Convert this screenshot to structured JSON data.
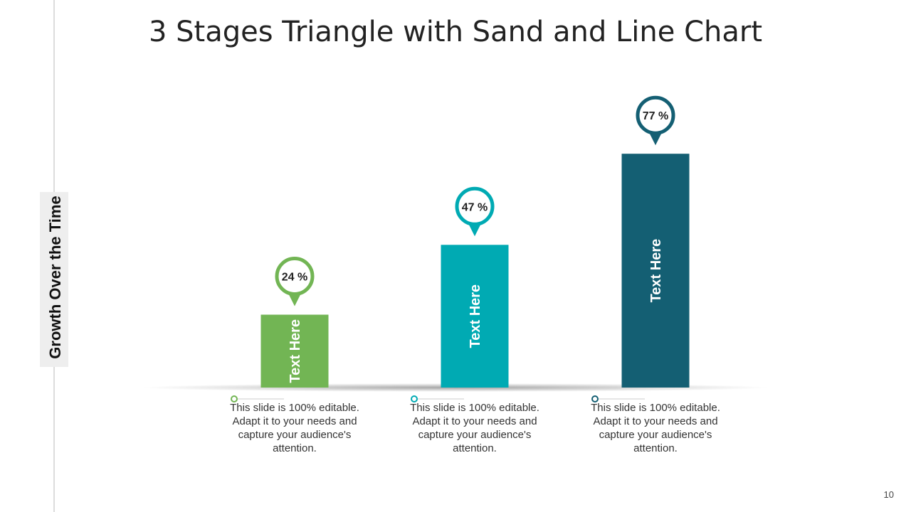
{
  "chart_data": {
    "type": "bar",
    "title": "3 Stages Triangle with Sand and Line Chart",
    "y_label": "Growth Over the Time",
    "categories": [
      "Text Here",
      "Text Here",
      "Text Here"
    ],
    "values": [
      24,
      47,
      77
    ],
    "value_labels": [
      "24 %",
      "47 %",
      "77 %"
    ],
    "colors": [
      "#72b554",
      "#00aab3",
      "#145f73"
    ],
    "descriptions": [
      "This slide is 100% editable. Adapt it to your needs and capture your audience's attention.",
      "This slide is 100% editable. Adapt it to your needs and capture your audience's attention.",
      "This slide is 100% editable. Adapt it to your needs and capture your audience's attention."
    ]
  },
  "page_number": "10"
}
